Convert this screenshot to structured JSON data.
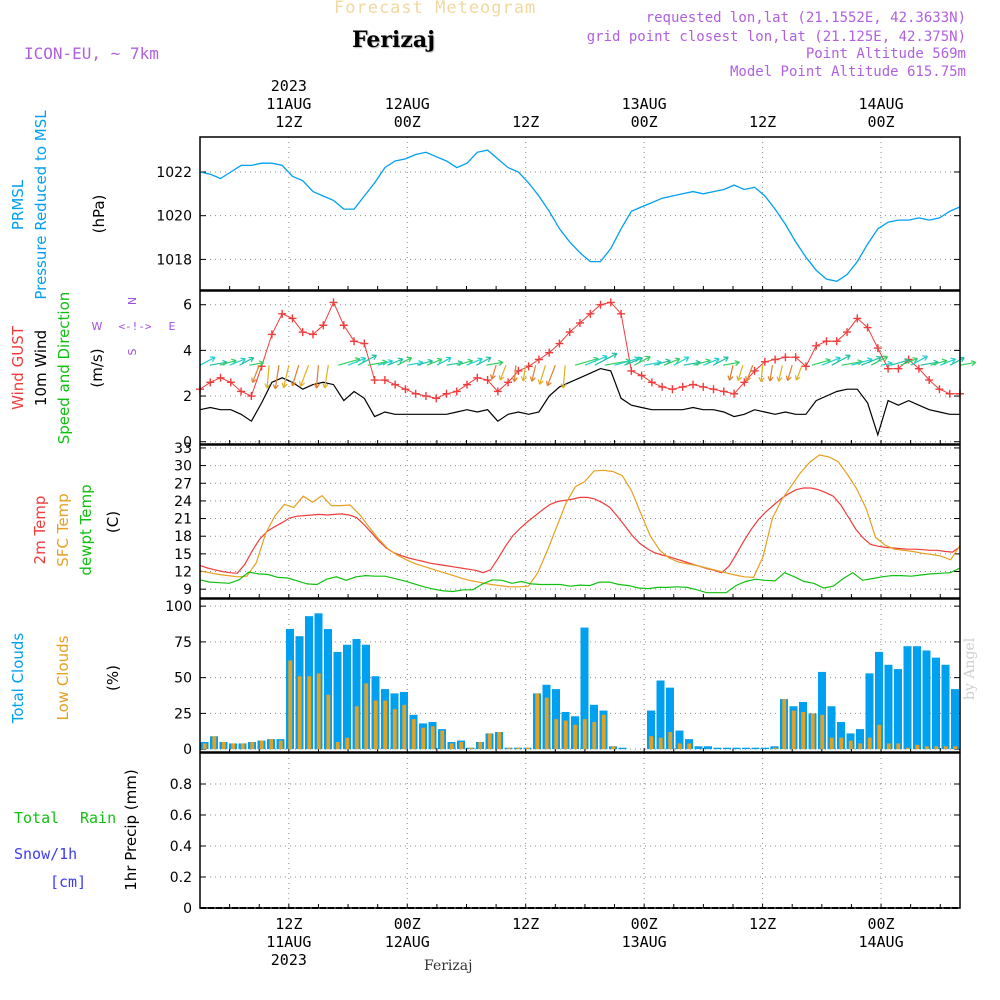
{
  "header": {
    "title": "Forecast Meteogram",
    "location": "Ferizaj",
    "model": "ICON-EU, ~ 7km",
    "requested": "requested lon,lat (21.1552E, 42.3633N)",
    "gridpoint": "grid point closest lon,lat (21.125E, 42.375N)",
    "point_alt": "Point Altitude 569m",
    "model_alt": "Model Point Altitude 615.75m",
    "footer": "Ferizaj",
    "watermark": "by Angel"
  },
  "colors": {
    "blue": "#00a0f0",
    "red": "#f03c3c",
    "orange": "#e6a020",
    "green": "#10c010",
    "purple": "#a050e0",
    "snowblue": "#3c3cf0",
    "black": "#000000"
  },
  "chart_data": [
    {
      "type": "line",
      "id": "pressure",
      "series_label": [
        "PRMSL",
        "Pressure Reduced to MSL"
      ],
      "unit": "(hPa)",
      "ylim": [
        1016.6,
        1023.6
      ],
      "yticks": [
        1018,
        1020,
        1022
      ],
      "series": [
        {
          "name": "PRMSL",
          "values": [
            1022.0,
            1021.9,
            1021.7,
            1022.0,
            1022.3,
            1022.3,
            1022.4,
            1022.4,
            1022.3,
            1021.8,
            1021.6,
            1021.1,
            1020.9,
            1020.7,
            1020.3,
            1020.3,
            1020.9,
            1021.5,
            1022.2,
            1022.5,
            1022.6,
            1022.8,
            1022.9,
            1022.7,
            1022.5,
            1022.2,
            1022.4,
            1022.9,
            1023.0,
            1022.6,
            1022.2,
            1022.0,
            1021.5,
            1020.9,
            1020.2,
            1019.4,
            1018.8,
            1018.3,
            1017.9,
            1017.9,
            1018.5,
            1019.4,
            1020.2,
            1020.4,
            1020.6,
            1020.8,
            1020.9,
            1021.0,
            1021.1,
            1021.0,
            1021.1,
            1021.2,
            1021.4,
            1021.2,
            1021.3,
            1020.9,
            1020.3,
            1019.6,
            1018.8,
            1018.1,
            1017.5,
            1017.1,
            1017.0,
            1017.3,
            1017.9,
            1018.7,
            1019.4,
            1019.7,
            1019.8,
            1019.8,
            1019.9,
            1019.8,
            1019.9,
            1020.2,
            1020.4
          ]
        }
      ]
    },
    {
      "type": "line",
      "id": "wind",
      "series_label": [
        "Wind GUST",
        "10m Wind",
        "Speed and Direction"
      ],
      "unit": "(m/s)",
      "compass": [
        "N",
        "W",
        "E",
        "S"
      ],
      "ylim": [
        -0.1,
        6.6
      ],
      "yticks": [
        0,
        2,
        4,
        6
      ],
      "series": [
        {
          "name": "Wind GUST",
          "values": [
            2.3,
            2.6,
            2.8,
            2.6,
            2.2,
            2.0,
            3.3,
            4.7,
            5.6,
            5.4,
            4.8,
            4.7,
            5.1,
            6.1,
            5.1,
            4.4,
            4.3,
            2.7,
            2.7,
            2.5,
            2.3,
            2.1,
            2.0,
            1.9,
            2.1,
            2.2,
            2.5,
            2.8,
            2.7,
            2.2,
            2.6,
            3.1,
            3.3,
            3.6,
            3.9,
            4.3,
            4.8,
            5.2,
            5.6,
            6.0,
            6.1,
            5.6,
            3.1,
            2.9,
            2.6,
            2.4,
            2.3,
            2.4,
            2.5,
            2.4,
            2.3,
            2.2,
            2.1,
            2.6,
            3.1,
            3.5,
            3.6,
            3.7,
            3.7,
            3.3,
            4.2,
            4.4,
            4.4,
            4.8,
            5.4,
            5.0,
            4.1,
            3.2,
            3.2,
            3.6,
            3.2,
            2.7,
            2.3,
            2.1,
            2.1
          ]
        },
        {
          "name": "10m Wind",
          "values": [
            1.4,
            1.5,
            1.4,
            1.4,
            1.2,
            0.9,
            1.7,
            2.6,
            2.8,
            2.6,
            2.3,
            2.5,
            2.6,
            2.5,
            1.8,
            2.2,
            1.9,
            1.1,
            1.3,
            1.2,
            1.2,
            1.2,
            1.2,
            1.2,
            1.2,
            1.3,
            1.4,
            1.3,
            1.4,
            0.9,
            1.2,
            1.3,
            1.2,
            1.3,
            2.0,
            2.4,
            2.6,
            2.8,
            3.0,
            3.2,
            3.1,
            1.9,
            1.6,
            1.5,
            1.4,
            1.4,
            1.4,
            1.4,
            1.5,
            1.4,
            1.4,
            1.3,
            1.1,
            1.2,
            1.4,
            1.3,
            1.2,
            1.3,
            1.2,
            1.2,
            1.8,
            2.0,
            2.2,
            2.3,
            2.3,
            1.7,
            0.3,
            1.8,
            1.6,
            1.8,
            1.6,
            1.4,
            1.3,
            1.2,
            1.2
          ]
        }
      ]
    },
    {
      "type": "line",
      "id": "temperature",
      "series_label": [
        "2m Temp",
        "SFC Temp",
        "dewpt Temp"
      ],
      "unit": "(C)",
      "ylim": [
        7.5,
        33.5
      ],
      "yticks": [
        9,
        12,
        15,
        18,
        21,
        24,
        27,
        30,
        33
      ],
      "series": [
        {
          "name": "2m Temp",
          "values": [
            13.0,
            12.6,
            12.3,
            12.0,
            11.8,
            11.7,
            13.2,
            15.5,
            17.5,
            18.8,
            19.6,
            20.3,
            21.1,
            21.4,
            21.5,
            21.6,
            21.7,
            21.6,
            21.7,
            21.8,
            21.6,
            21.2,
            20.0,
            18.6,
            17.2,
            16.0,
            15.2,
            14.7,
            14.3,
            14.0,
            13.7,
            13.4,
            13.2,
            13.0,
            12.8,
            12.6,
            12.4,
            12.2,
            11.8,
            12.3,
            14.2,
            16.3,
            18.1,
            19.4,
            20.5,
            21.5,
            22.5,
            23.4,
            23.9,
            24.1,
            24.3,
            24.6,
            24.6,
            24.3,
            23.7,
            22.9,
            21.4,
            19.8,
            18.1,
            16.8,
            15.9,
            15.2,
            14.8,
            14.5,
            14.1,
            13.7,
            13.3,
            12.9,
            12.5,
            12.2,
            11.8,
            12.9,
            15.0,
            17.2,
            19.2,
            20.9,
            22.2,
            23.3,
            24.4,
            25.2,
            25.9,
            26.2,
            26.2,
            25.9,
            25.4,
            24.8,
            23.3,
            21.3,
            19.2,
            17.7,
            16.6,
            16.3,
            16.1,
            16.0,
            15.9,
            15.8,
            15.8,
            15.7,
            15.6,
            15.6,
            15.4,
            15.3,
            16.2
          ]
        },
        {
          "name": "SFC Temp",
          "values": [
            12.1,
            11.8,
            11.5,
            11.3,
            11.1,
            11.2,
            13.5,
            18.5,
            21.5,
            23.4,
            22.9,
            24.8,
            23.8,
            24.9,
            23.2,
            23.2,
            23.3,
            21.7,
            19.6,
            17.6,
            15.9,
            14.8,
            14.0,
            13.3,
            12.8,
            12.3,
            11.8,
            11.3,
            10.8,
            10.4,
            10.1,
            9.8,
            9.6,
            9.4,
            9.4,
            9.5,
            11.8,
            15.5,
            19.5,
            23.6,
            26.4,
            27.3,
            29.1,
            29.2,
            29.0,
            28.3,
            25.7,
            21.8,
            18.0,
            15.6,
            14.3,
            13.6,
            13.3,
            13.0,
            12.6,
            12.2,
            11.8,
            11.4,
            11.1,
            11.0,
            14.5,
            21.0,
            24.2,
            26.5,
            28.8,
            30.6,
            31.8,
            31.5,
            30.7,
            28.5,
            26.0,
            22.7,
            17.8,
            16.5,
            15.8,
            15.6,
            15.4,
            15.1,
            14.9,
            14.6,
            14.0,
            16.4
          ]
        },
        {
          "name": "dewpt Temp",
          "values": [
            10.6,
            10.2,
            10.1,
            10.0,
            10.6,
            11.9,
            11.6,
            11.5,
            11.0,
            10.9,
            10.4,
            9.9,
            9.8,
            10.7,
            11.1,
            10.5,
            11.1,
            11.3,
            11.2,
            11.2,
            10.8,
            10.4,
            9.9,
            9.4,
            9.0,
            8.7,
            8.6,
            8.9,
            8.9,
            9.9,
            10.6,
            10.5,
            10.0,
            10.3,
            9.9,
            9.8,
            9.8,
            9.8,
            9.5,
            9.7,
            9.6,
            10.2,
            10.2,
            9.8,
            9.6,
            9.2,
            9.1,
            9.3,
            9.3,
            9.4,
            9.3,
            8.9,
            8.4,
            8.4,
            8.4,
            9.6,
            10.3,
            10.7,
            10.5,
            10.4,
            11.8,
            11.1,
            10.3,
            10.0,
            9.2,
            9.5,
            10.8,
            11.8,
            10.5,
            10.8,
            11.1,
            11.3,
            11.3,
            11.2,
            11.4,
            11.6,
            11.7,
            11.8,
            12.6
          ]
        }
      ]
    },
    {
      "type": "bar",
      "id": "clouds",
      "series_label": [
        "Total Clouds",
        "Low Clouds"
      ],
      "unit": "(%)",
      "ylim": [
        -2,
        105
      ],
      "yticks": [
        0,
        25,
        50,
        75,
        100
      ],
      "series": [
        {
          "name": "Total Clouds",
          "values": [
            5,
            9,
            5,
            4,
            4,
            5,
            6,
            7,
            7,
            84,
            79,
            93,
            95,
            84,
            68,
            73,
            77,
            73,
            51,
            42,
            39,
            40,
            24,
            18,
            19,
            14,
            5,
            6,
            1,
            5,
            11,
            12,
            1,
            1,
            1,
            39,
            45,
            42,
            26,
            23,
            85,
            31,
            27,
            2,
            1,
            0,
            0,
            27,
            48,
            43,
            13,
            7,
            2,
            2,
            1,
            1,
            1,
            1,
            1,
            1,
            2,
            35,
            30,
            33,
            25,
            54,
            30,
            19,
            11,
            14,
            53,
            68,
            59,
            56,
            72,
            72,
            69,
            64,
            59,
            42
          ]
        },
        {
          "name": "Low Clouds",
          "values": [
            4,
            9,
            5,
            4,
            4,
            5,
            6,
            7,
            6,
            62,
            51,
            51,
            53,
            38,
            5,
            8,
            30,
            46,
            34,
            34,
            28,
            31,
            21,
            15,
            16,
            13,
            4,
            5,
            1,
            5,
            11,
            12,
            1,
            1,
            1,
            39,
            36,
            21,
            20,
            17,
            21,
            19,
            24,
            2,
            0,
            0,
            0,
            9,
            8,
            12,
            4,
            4,
            0,
            0,
            0,
            0,
            0,
            0,
            0,
            0,
            1,
            35,
            27,
            26,
            25,
            24,
            8,
            8,
            6,
            4,
            8,
            17,
            4,
            4,
            1,
            3,
            2,
            2,
            2,
            2
          ]
        }
      ]
    },
    {
      "type": "bar",
      "id": "precip",
      "series_label": [
        "Total",
        "Rain",
        "Snow/1h",
        "[cm]"
      ],
      "unit": "1hr Precip (mm)",
      "ylim": [
        0,
        1
      ],
      "yticks": [
        "0",
        "0.2",
        "0.4",
        "0.6",
        "0.8"
      ],
      "series": [
        {
          "name": "Total Rain",
          "values": []
        }
      ]
    }
  ],
  "time_axis": {
    "start_hour_offset": 3,
    "hours": 77,
    "ticks": [
      {
        "hour": 12,
        "top": [
          "2023",
          "11AUG",
          "12Z"
        ],
        "bottom": [
          "12Z",
          "11AUG",
          "2023"
        ]
      },
      {
        "hour": 24,
        "top": [
          "12AUG",
          "00Z"
        ],
        "bottom": [
          "00Z",
          "12AUG"
        ]
      },
      {
        "hour": 36,
        "top": [
          "12Z"
        ],
        "bottom": [
          "12Z"
        ]
      },
      {
        "hour": 48,
        "top": [
          "13AUG",
          "00Z"
        ],
        "bottom": [
          "00Z",
          "13AUG"
        ]
      },
      {
        "hour": 60,
        "top": [
          "12Z"
        ],
        "bottom": [
          "12Z"
        ]
      },
      {
        "hour": 72,
        "top": [
          "14AUG",
          "00Z"
        ],
        "bottom": [
          "00Z",
          "14AUG"
        ]
      }
    ]
  }
}
